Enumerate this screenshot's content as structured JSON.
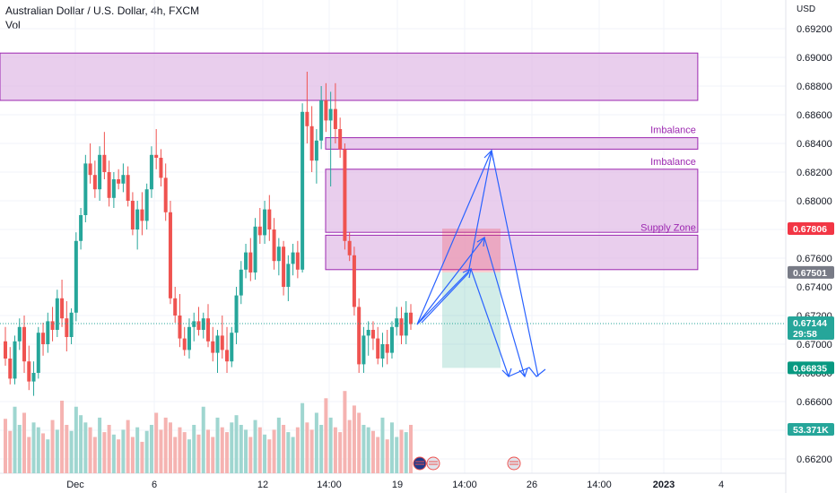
{
  "header": {
    "title": "Australian Dollar / U.S. Dollar, 4h, FXCM",
    "vol_label": "Vol"
  },
  "axis": {
    "currency": "USD"
  },
  "chart_data": {
    "type": "candlestick",
    "symbol": "Australian Dollar / U.S. Dollar, 4h, FXCM",
    "ylim": [
      0.661,
      0.694
    ],
    "y_ticks": [
      "0.69200",
      "0.69000",
      "0.68800",
      "0.68600",
      "0.68400",
      "0.68200",
      "0.68000",
      "0.67800",
      "0.67600",
      "0.67400",
      "0.67200",
      "0.67000",
      "0.66800",
      "0.66600",
      "0.66400",
      "0.66200"
    ],
    "x_ticks": [
      "Dec",
      "6",
      "12",
      "14:00",
      "19",
      "14:00",
      "26",
      "14:00",
      "2023",
      "4"
    ],
    "candles": [
      [
        0.6702,
        0.6712,
        0.6685,
        0.669
      ],
      [
        0.669,
        0.6698,
        0.6672,
        0.6676
      ],
      [
        0.6676,
        0.6706,
        0.6672,
        0.6702
      ],
      [
        0.6702,
        0.6718,
        0.6696,
        0.6712
      ],
      [
        0.6712,
        0.672,
        0.668,
        0.6688
      ],
      [
        0.6688,
        0.6699,
        0.6668,
        0.6674
      ],
      [
        0.6674,
        0.6688,
        0.6664,
        0.668
      ],
      [
        0.668,
        0.6712,
        0.6676,
        0.6708
      ],
      [
        0.6708,
        0.6715,
        0.6692,
        0.67
      ],
      [
        0.67,
        0.6722,
        0.6694,
        0.6716
      ],
      [
        0.6716,
        0.6726,
        0.6702,
        0.671
      ],
      [
        0.671,
        0.6738,
        0.6705,
        0.6732
      ],
      [
        0.6732,
        0.6745,
        0.6712,
        0.6718
      ],
      [
        0.6718,
        0.673,
        0.6695,
        0.6705
      ],
      [
        0.6705,
        0.6725,
        0.67,
        0.6722
      ],
      [
        0.6722,
        0.6778,
        0.6716,
        0.6772
      ],
      [
        0.6772,
        0.6795,
        0.6766,
        0.679
      ],
      [
        0.679,
        0.6832,
        0.6785,
        0.6826
      ],
      [
        0.6826,
        0.684,
        0.6812,
        0.6818
      ],
      [
        0.6818,
        0.6828,
        0.6802,
        0.6808
      ],
      [
        0.6808,
        0.6838,
        0.68,
        0.6832
      ],
      [
        0.6832,
        0.6848,
        0.6815,
        0.682
      ],
      [
        0.682,
        0.6828,
        0.6796,
        0.6802
      ],
      [
        0.6802,
        0.682,
        0.6795,
        0.6815
      ],
      [
        0.6815,
        0.6822,
        0.6808,
        0.6812
      ],
      [
        0.6812,
        0.6826,
        0.6806,
        0.6818
      ],
      [
        0.6818,
        0.6824,
        0.6796,
        0.68
      ],
      [
        0.68,
        0.6806,
        0.6776,
        0.678
      ],
      [
        0.678,
        0.68,
        0.6766,
        0.6794
      ],
      [
        0.6794,
        0.6806,
        0.6776,
        0.6786
      ],
      [
        0.6786,
        0.6812,
        0.678,
        0.6808
      ],
      [
        0.6808,
        0.6838,
        0.6802,
        0.6832
      ],
      [
        0.6832,
        0.685,
        0.6822,
        0.683
      ],
      [
        0.683,
        0.6836,
        0.681,
        0.6816
      ],
      [
        0.6816,
        0.6826,
        0.6786,
        0.6792
      ],
      [
        0.6792,
        0.68,
        0.6728,
        0.6732
      ],
      [
        0.6732,
        0.674,
        0.6715,
        0.672
      ],
      [
        0.672,
        0.6735,
        0.6698,
        0.6704
      ],
      [
        0.6704,
        0.6712,
        0.6692,
        0.6696
      ],
      [
        0.6696,
        0.6718,
        0.669,
        0.6712
      ],
      [
        0.6712,
        0.6722,
        0.6702,
        0.6716
      ],
      [
        0.6716,
        0.6726,
        0.6706,
        0.671
      ],
      [
        0.671,
        0.6722,
        0.6704,
        0.6718
      ],
      [
        0.6718,
        0.6728,
        0.6698,
        0.6702
      ],
      [
        0.6702,
        0.6712,
        0.6688,
        0.6694
      ],
      [
        0.6694,
        0.671,
        0.668,
        0.6706
      ],
      [
        0.6706,
        0.672,
        0.669,
        0.6696
      ],
      [
        0.6696,
        0.6712,
        0.668,
        0.6688
      ],
      [
        0.6688,
        0.6712,
        0.6684,
        0.6708
      ],
      [
        0.6708,
        0.674,
        0.67,
        0.6734
      ],
      [
        0.6734,
        0.6758,
        0.6728,
        0.6752
      ],
      [
        0.6752,
        0.677,
        0.6746,
        0.6764
      ],
      [
        0.6764,
        0.6774,
        0.6744,
        0.675
      ],
      [
        0.675,
        0.6788,
        0.6745,
        0.6782
      ],
      [
        0.6782,
        0.6795,
        0.677,
        0.6776
      ],
      [
        0.6776,
        0.68,
        0.677,
        0.6794
      ],
      [
        0.6794,
        0.6804,
        0.6772,
        0.678
      ],
      [
        0.678,
        0.6788,
        0.6752,
        0.6758
      ],
      [
        0.6758,
        0.6774,
        0.6748,
        0.6768
      ],
      [
        0.6768,
        0.6772,
        0.6734,
        0.674
      ],
      [
        0.674,
        0.6762,
        0.673,
        0.6756
      ],
      [
        0.6756,
        0.677,
        0.6748,
        0.6764
      ],
      [
        0.6764,
        0.6772,
        0.6746,
        0.6752
      ],
      [
        0.6752,
        0.6868,
        0.675,
        0.6862
      ],
      [
        0.6862,
        0.689,
        0.684,
        0.6852
      ],
      [
        0.6852,
        0.6866,
        0.682,
        0.6828
      ],
      [
        0.6828,
        0.685,
        0.6812,
        0.6842
      ],
      [
        0.6842,
        0.688,
        0.6836,
        0.687
      ],
      [
        0.687,
        0.6882,
        0.6848,
        0.6856
      ],
      [
        0.6856,
        0.6876,
        0.681,
        0.6864
      ],
      [
        0.6864,
        0.6882,
        0.684,
        0.685
      ],
      [
        0.685,
        0.6858,
        0.683,
        0.6836
      ],
      [
        0.6836,
        0.684,
        0.6766,
        0.6772
      ],
      [
        0.6772,
        0.6778,
        0.6758,
        0.6762
      ],
      [
        0.6762,
        0.6768,
        0.672,
        0.6726
      ],
      [
        0.6726,
        0.6732,
        0.668,
        0.6686
      ],
      [
        0.6686,
        0.6712,
        0.668,
        0.6706
      ],
      [
        0.6706,
        0.6716,
        0.6692,
        0.671
      ],
      [
        0.671,
        0.6716,
        0.6696,
        0.6704
      ],
      [
        0.6704,
        0.6712,
        0.6686,
        0.669
      ],
      [
        0.669,
        0.6708,
        0.6684,
        0.67
      ],
      [
        0.67,
        0.671,
        0.6686,
        0.6694
      ],
      [
        0.6694,
        0.6716,
        0.669,
        0.6712
      ],
      [
        0.6712,
        0.6726,
        0.6706,
        0.6718
      ],
      [
        0.6718,
        0.6726,
        0.67,
        0.6706
      ],
      [
        0.6706,
        0.673,
        0.67,
        0.6722
      ],
      [
        0.6722,
        0.6728,
        0.671,
        0.6714
      ]
    ],
    "volumes": [
      0.45,
      0.35,
      0.55,
      0.4,
      0.5,
      0.3,
      0.42,
      0.38,
      0.33,
      0.28,
      0.44,
      0.36,
      0.6,
      0.4,
      0.35,
      0.55,
      0.48,
      0.42,
      0.38,
      0.3,
      0.46,
      0.34,
      0.4,
      0.32,
      0.28,
      0.36,
      0.44,
      0.3,
      0.38,
      0.26,
      0.35,
      0.4,
      0.5,
      0.36,
      0.46,
      0.42,
      0.3,
      0.38,
      0.34,
      0.28,
      0.4,
      0.32,
      0.55,
      0.36,
      0.3,
      0.46,
      0.38,
      0.34,
      0.42,
      0.48,
      0.4,
      0.36,
      0.3,
      0.44,
      0.38,
      0.32,
      0.28,
      0.36,
      0.46,
      0.4,
      0.34,
      0.3,
      0.38,
      0.58,
      0.42,
      0.36,
      0.5,
      0.4,
      0.62,
      0.46,
      0.38,
      0.34,
      0.68,
      0.44,
      0.56,
      0.5,
      0.4,
      0.38,
      0.35,
      0.3,
      0.46,
      0.28,
      0.42,
      0.3,
      0.36,
      0.34,
      0.4
    ],
    "zones": [
      {
        "name": "",
        "top": 0.6903,
        "bottom": 0.687,
        "x_end_frac": 0.888
      },
      {
        "name": "Imbalance",
        "top": 0.6844,
        "bottom": 0.6836,
        "x_end_frac": 0.888
      },
      {
        "name": "Imbalance",
        "top": 0.6822,
        "bottom": 0.6778,
        "x_end_frac": 0.888
      },
      {
        "name": "Supply Zone",
        "top": 0.6776,
        "bottom": 0.6752,
        "x_end_frac": 0.888
      }
    ],
    "position": {
      "entry": 0.67501,
      "stop": 0.67806,
      "target": 0.66835
    },
    "last_price": 0.67144,
    "countdown": "29:58",
    "last_volume": "53.371K",
    "price_tags": [
      {
        "label": "0.67806",
        "value": 0.67806,
        "color": "#f23645"
      },
      {
        "label": "0.67501",
        "value": 0.67501,
        "color": "#787b86"
      },
      {
        "label": "0.66835",
        "value": 0.66835,
        "color": "#089981"
      }
    ],
    "colors": {
      "up": "#26a69a",
      "down": "#ef5350",
      "zone_fill": "#e1bee7",
      "zone_border": "#9c27b0",
      "arrows": "#2962ff"
    }
  }
}
